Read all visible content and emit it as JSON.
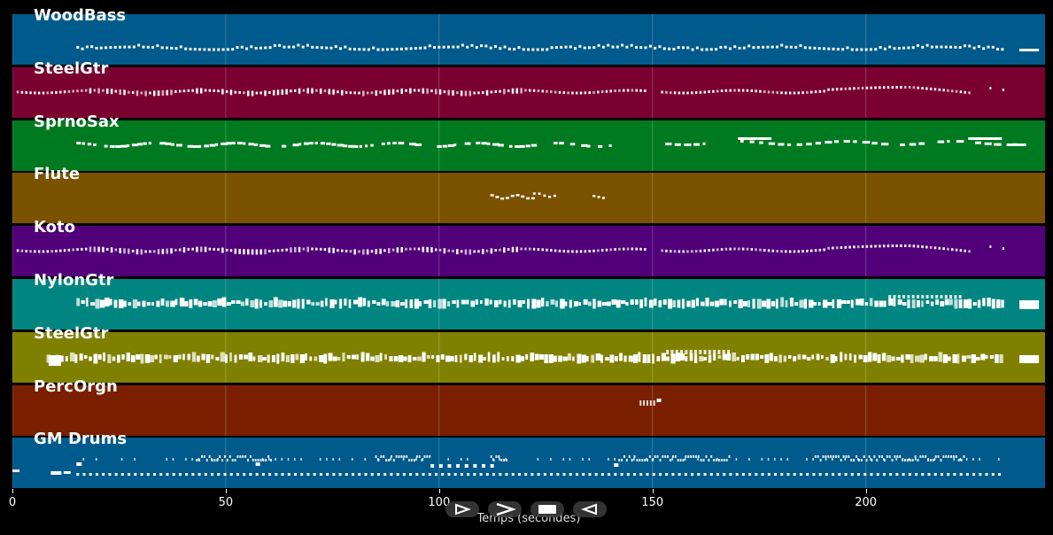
{
  "tracks": [
    {
      "name": "WoodBass",
      "color": "#005a8c",
      "pattern": "bass"
    },
    {
      "name": "SteelGtr",
      "color": "#7a0030",
      "pattern": "melody"
    },
    {
      "name": "SprnoSax",
      "color": "#007a20",
      "pattern": "sax"
    },
    {
      "name": "Flute",
      "color": "#7a5200",
      "pattern": "flute"
    },
    {
      "name": "Koto",
      "color": "#52007a",
      "pattern": "melody"
    },
    {
      "name": "NylonGtr",
      "color": "#008580",
      "pattern": "chords"
    },
    {
      "name": "SteelGtr",
      "color": "#808000",
      "pattern": "chords2"
    },
    {
      "name": "PercOrgn",
      "color": "#7a2000",
      "pattern": "perc"
    },
    {
      "name": "GM Drums",
      "color": "#005a8c",
      "pattern": "drums"
    }
  ],
  "timeline": {
    "x_min": 0,
    "x_max": 242,
    "ticks": [
      0,
      50,
      100,
      150,
      200
    ],
    "tick_labels": [
      "0",
      "50",
      "100",
      "150",
      "200"
    ],
    "axis_title": "Temps (secondes)"
  },
  "controls": [
    {
      "icon": "play-icon",
      "label": "play"
    },
    {
      "icon": "fast-forward-icon",
      "label": "forward"
    },
    {
      "icon": "stop-icon",
      "label": "stop"
    },
    {
      "icon": "rewind-icon",
      "label": "back"
    }
  ]
}
